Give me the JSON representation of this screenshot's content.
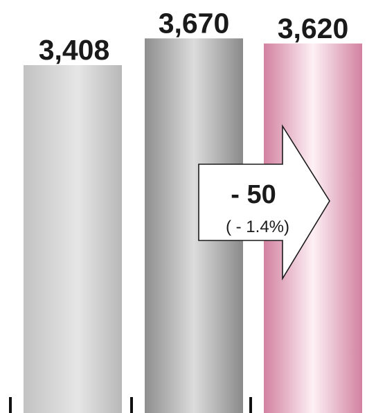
{
  "chart_data": {
    "type": "bar",
    "title": "",
    "xlabel": "",
    "ylabel": "",
    "categories": [
      "",
      "",
      ""
    ],
    "values": [
      3408,
      3670,
      3620
    ],
    "value_labels": [
      "3,408",
      "3,670",
      "3,620"
    ],
    "ylim": [
      0,
      3800
    ],
    "grid": false,
    "bar_styles": [
      "light-gray-gradient",
      "dark-gray-gradient",
      "pink-gradient"
    ],
    "bar_colors": [
      "#c8c8c8",
      "#9a9a9a",
      "#d88aa8"
    ],
    "annotation": {
      "type": "arrow",
      "main": "- 50",
      "sub": "( - 1.4%)"
    }
  }
}
